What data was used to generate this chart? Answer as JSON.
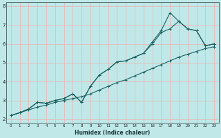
{
  "xlabel": "Humidex (Indice chaleur)",
  "bg_color": "#c0e8e8",
  "grid_color": "#e8b8b8",
  "line_color": "#1a6060",
  "xlim": [
    -0.5,
    23.5
  ],
  "ylim": [
    1.8,
    8.2
  ],
  "xticks": [
    0,
    1,
    2,
    3,
    4,
    5,
    6,
    7,
    8,
    9,
    10,
    11,
    12,
    13,
    14,
    15,
    16,
    17,
    18,
    19,
    20,
    21,
    22,
    23
  ],
  "yticks": [
    2,
    3,
    4,
    5,
    6,
    7,
    8
  ],
  "series1": {
    "x": [
      0,
      1,
      2,
      3,
      4,
      5,
      6,
      7,
      8,
      9,
      10,
      11,
      12,
      13,
      14,
      15,
      16,
      17,
      18,
      19,
      20,
      21,
      22,
      23
    ],
    "y": [
      2.2,
      2.35,
      2.5,
      2.65,
      2.75,
      2.9,
      3.0,
      3.1,
      3.2,
      3.35,
      3.55,
      3.75,
      3.95,
      4.1,
      4.3,
      4.5,
      4.7,
      4.9,
      5.1,
      5.3,
      5.45,
      5.6,
      5.75,
      5.85
    ]
  },
  "series2": {
    "x": [
      0,
      1,
      2,
      3,
      4,
      5,
      6,
      7,
      8,
      9,
      10,
      11,
      12,
      13,
      14,
      15,
      16,
      17,
      18,
      19,
      20,
      21,
      22,
      23
    ],
    "y": [
      2.2,
      2.35,
      2.55,
      2.9,
      2.85,
      3.0,
      3.1,
      3.35,
      2.9,
      3.75,
      4.35,
      4.65,
      5.05,
      5.1,
      5.3,
      5.5,
      6.0,
      6.6,
      6.8,
      7.2,
      6.8,
      6.7,
      5.9,
      6.0
    ]
  },
  "series3": {
    "x": [
      0,
      1,
      2,
      3,
      4,
      5,
      6,
      7,
      8,
      9,
      10,
      11,
      12,
      13,
      14,
      15,
      16,
      17,
      18,
      19,
      20,
      21,
      22,
      23
    ],
    "y": [
      2.2,
      2.35,
      2.55,
      2.9,
      2.85,
      3.0,
      3.1,
      3.35,
      2.9,
      3.75,
      4.35,
      4.65,
      5.05,
      5.1,
      5.3,
      5.5,
      6.1,
      6.7,
      7.65,
      7.2,
      6.8,
      6.7,
      5.9,
      6.0
    ]
  }
}
